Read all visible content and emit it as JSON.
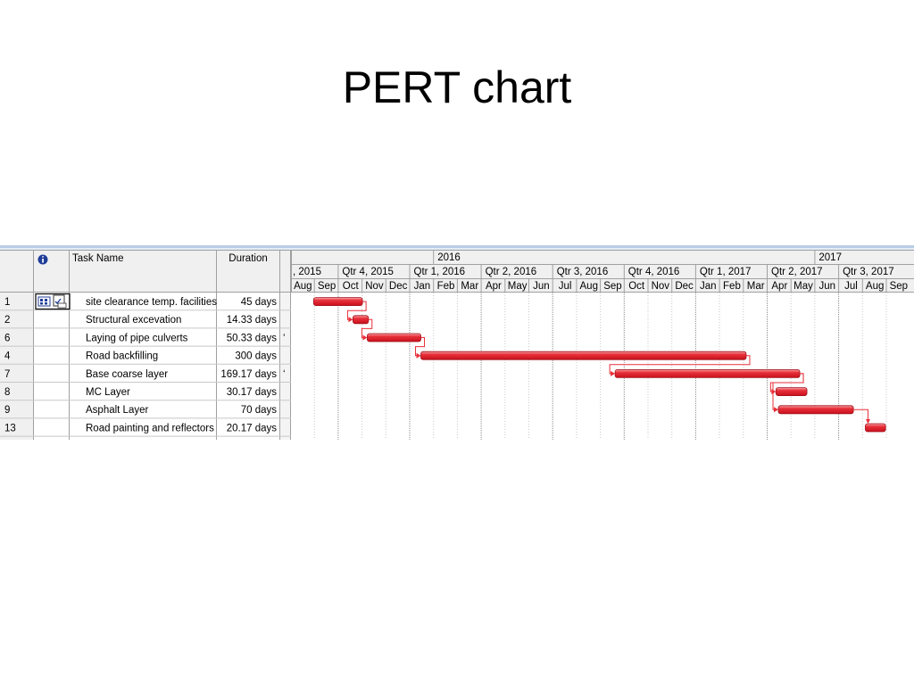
{
  "slide": {
    "title": "PERT chart"
  },
  "table": {
    "columns": {
      "info_icon": "info-icon",
      "task_name": "Task Name",
      "duration": "Duration"
    },
    "rows": [
      {
        "id": "1",
        "name": "site clearance temp. facilities",
        "duration": "45 days",
        "has_indicator": true
      },
      {
        "id": "2",
        "name": "Structural excevation",
        "duration": "14.33 days"
      },
      {
        "id": "6",
        "name": "Laying of pipe culverts",
        "duration": "50.33 days"
      },
      {
        "id": "4",
        "name": "Road backfilling",
        "duration": "300 days"
      },
      {
        "id": "7",
        "name": "Base coarse layer",
        "duration": "169.17 days"
      },
      {
        "id": "8",
        "name": "MC Layer",
        "duration": "30.17 days"
      },
      {
        "id": "9",
        "name": "Asphalt Layer",
        "duration": "70 days"
      },
      {
        "id": "13",
        "name": "Road painting and reflectors",
        "duration": "20.17 days"
      }
    ]
  },
  "timescale": {
    "years": [
      {
        "label": "2016",
        "start": 6
      },
      {
        "label": "2017",
        "start": 22
      }
    ],
    "quarters": [
      {
        "label": ", 2015",
        "start": 0,
        "span": 2
      },
      {
        "label": "Qtr 4, 2015",
        "start": 2,
        "span": 3
      },
      {
        "label": "Qtr 1, 2016",
        "start": 5,
        "span": 3
      },
      {
        "label": "Qtr 2, 2016",
        "start": 8,
        "span": 3
      },
      {
        "label": "Qtr 3, 2016",
        "start": 11,
        "span": 3
      },
      {
        "label": "Qtr 4, 2016",
        "start": 14,
        "span": 3
      },
      {
        "label": "Qtr 1, 2017",
        "start": 17,
        "span": 3
      },
      {
        "label": "Qtr 2, 2017",
        "start": 20,
        "span": 3
      },
      {
        "label": "Qtr 3, 2017",
        "start": 23,
        "span": 3
      }
    ],
    "months": [
      "Aug",
      "Sep",
      "Oct",
      "Nov",
      "Dec",
      "Jan",
      "Feb",
      "Mar",
      "Apr",
      "May",
      "Jun",
      "Jul",
      "Aug",
      "Sep",
      "Oct",
      "Nov",
      "Dec",
      "Jan",
      "Feb",
      "Mar",
      "Apr",
      "May",
      "Jun",
      "Jul",
      "Aug",
      "Sep"
    ]
  },
  "chart_data": {
    "type": "gantt",
    "title": "PERT chart",
    "month_origin": "Aug 2015",
    "tasks": [
      {
        "id": "1",
        "start": 0.95,
        "end": 3.0
      },
      {
        "id": "2",
        "start": 2.6,
        "end": 3.25
      },
      {
        "id": "6",
        "start": 3.2,
        "end": 5.45
      },
      {
        "id": "4",
        "start": 5.45,
        "end": 19.1
      },
      {
        "id": "7",
        "start": 13.6,
        "end": 21.35
      },
      {
        "id": "8",
        "start": 20.35,
        "end": 21.65
      },
      {
        "id": "9",
        "start": 20.45,
        "end": 23.6
      },
      {
        "id": "13",
        "start": 24.1,
        "end": 24.95
      }
    ],
    "links": [
      {
        "from": "1",
        "to": "2"
      },
      {
        "from": "2",
        "to": "6"
      },
      {
        "from": "6",
        "to": "4"
      },
      {
        "from": "4",
        "to": "7"
      },
      {
        "from": "7",
        "to": "8"
      },
      {
        "from": "7",
        "to": "9"
      },
      {
        "from": "9",
        "to": "13"
      }
    ],
    "bar_color": "#e8313a",
    "grid_color": "#9a9a9a"
  }
}
